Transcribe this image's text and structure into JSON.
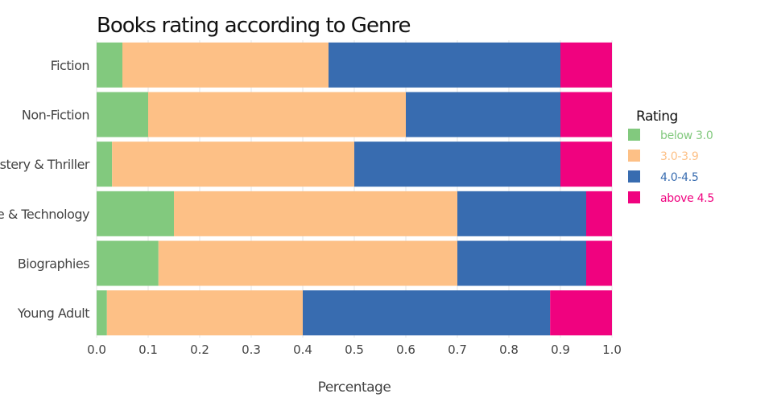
{
  "chart_data": {
    "type": "bar",
    "orientation": "horizontal",
    "stacked": true,
    "title": "Books rating according to Genre",
    "xlabel": "Percentage",
    "ylabel": "",
    "xlim": [
      0,
      1
    ],
    "xticks": [
      "0.0",
      "0.1",
      "0.2",
      "0.3",
      "0.4",
      "0.5",
      "0.6",
      "0.7",
      "0.8",
      "0.9",
      "1.0"
    ],
    "grid": true,
    "legend": {
      "title": "Rating",
      "position": "right"
    },
    "categories": [
      "Fiction",
      "Non-Fiction",
      "Mystery & Thriller",
      "Science & Technology",
      "Biographies",
      "Young Adult"
    ],
    "series": [
      {
        "name": "below 3.0",
        "color": "#82c97e",
        "values": [
          0.05,
          0.1,
          0.03,
          0.15,
          0.12,
          0.02
        ]
      },
      {
        "name": "3.0-3.9",
        "color": "#fdc086",
        "values": [
          0.4,
          0.5,
          0.47,
          0.55,
          0.58,
          0.38
        ]
      },
      {
        "name": "4.0-4.5",
        "color": "#386cb0",
        "values": [
          0.45,
          0.3,
          0.4,
          0.25,
          0.25,
          0.48
        ]
      },
      {
        "name": "above 4.5",
        "color": "#f0027f",
        "values": [
          0.1,
          0.1,
          0.1,
          0.05,
          0.05,
          0.12
        ]
      }
    ]
  }
}
